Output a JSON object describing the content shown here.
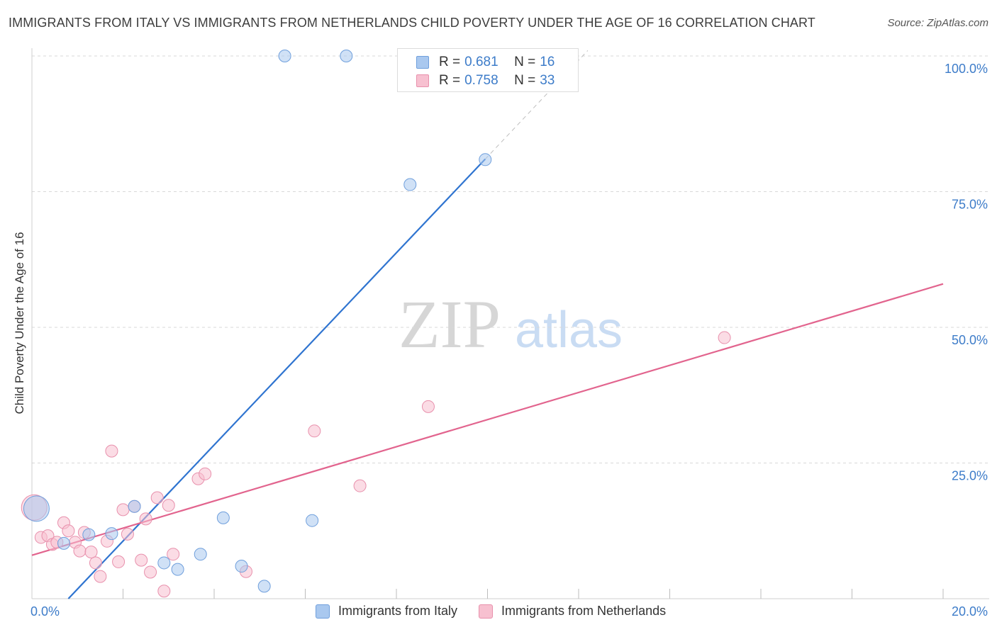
{
  "title": "IMMIGRANTS FROM ITALY VS IMMIGRANTS FROM NETHERLANDS CHILD POVERTY UNDER THE AGE OF 16 CORRELATION CHART",
  "source": "Source: ZipAtlas.com",
  "watermark": {
    "zip": "ZIP",
    "atlas": "atlas"
  },
  "legend": {
    "rows": [
      {
        "r_label": "R =",
        "r_value": "0.681",
        "n_label": "N =",
        "n_value": "16"
      },
      {
        "r_label": "R =",
        "r_value": "0.758",
        "n_label": "N =",
        "n_value": "33"
      }
    ]
  },
  "colors": {
    "italy": "#a9c8ef",
    "italy_edge": "#6f9fdc",
    "italy_line": "#2f74d0",
    "netherlands": "#f7c0d0",
    "netherlands_edge": "#e890ac",
    "netherlands_line": "#e2648e",
    "grid": "#d8d8d8",
    "tick_label": "#3d7cc9"
  },
  "chart_data": {
    "type": "scatter",
    "title": "IMMIGRANTS FROM ITALY VS IMMIGRANTS FROM NETHERLANDS CHILD POVERTY UNDER THE AGE OF 16 CORRELATION CHART",
    "xlabel": "",
    "ylabel": "Child Poverty Under the Age of 16",
    "xlim": [
      0,
      20
    ],
    "ylim": [
      0,
      100
    ],
    "x_tick_labels": [
      "0.0%",
      "20.0%"
    ],
    "y_tick_labels": [
      "25.0%",
      "50.0%",
      "75.0%",
      "100.0%"
    ],
    "y_ticks": [
      25,
      50,
      75,
      100
    ],
    "legend_position": "top-center",
    "series": [
      {
        "name": "Immigrants from Italy",
        "color": "#a9c8ef",
        "points": [
          {
            "x": 0.1,
            "y": 16.6,
            "size": "large"
          },
          {
            "x": 0.7,
            "y": 10.2
          },
          {
            "x": 1.25,
            "y": 11.8
          },
          {
            "x": 1.75,
            "y": 12.0
          },
          {
            "x": 2.25,
            "y": 17.0
          },
          {
            "x": 2.9,
            "y": 6.6
          },
          {
            "x": 3.2,
            "y": 5.4
          },
          {
            "x": 3.7,
            "y": 8.2
          },
          {
            "x": 4.2,
            "y": 14.9
          },
          {
            "x": 4.6,
            "y": 6.0
          },
          {
            "x": 5.1,
            "y": 2.3
          },
          {
            "x": 6.15,
            "y": 14.4
          },
          {
            "x": 5.55,
            "y": 100
          },
          {
            "x": 6.9,
            "y": 100
          },
          {
            "x": 8.3,
            "y": 76.3
          },
          {
            "x": 9.95,
            "y": 80.9
          }
        ],
        "trend": {
          "x": [
            0.8,
            9.95
          ],
          "y": [
            0,
            81
          ],
          "dashed_extension_to": {
            "x": 12.2,
            "y": 101
          }
        }
      },
      {
        "name": "Immigrants from Netherlands",
        "color": "#f7c0d0",
        "points": [
          {
            "x": 0.05,
            "y": 16.8,
            "size": "large"
          },
          {
            "x": 0.2,
            "y": 11.3
          },
          {
            "x": 0.35,
            "y": 11.6
          },
          {
            "x": 0.45,
            "y": 10.0
          },
          {
            "x": 0.55,
            "y": 10.4
          },
          {
            "x": 0.7,
            "y": 14.0
          },
          {
            "x": 0.8,
            "y": 12.5
          },
          {
            "x": 0.95,
            "y": 10.4
          },
          {
            "x": 1.05,
            "y": 8.8
          },
          {
            "x": 1.15,
            "y": 12.2
          },
          {
            "x": 1.3,
            "y": 8.6
          },
          {
            "x": 1.4,
            "y": 6.6
          },
          {
            "x": 1.5,
            "y": 4.1
          },
          {
            "x": 1.65,
            "y": 10.6
          },
          {
            "x": 1.75,
            "y": 27.2
          },
          {
            "x": 1.9,
            "y": 6.8
          },
          {
            "x": 2.0,
            "y": 16.4
          },
          {
            "x": 2.1,
            "y": 11.9
          },
          {
            "x": 2.25,
            "y": 17.0
          },
          {
            "x": 2.4,
            "y": 7.1
          },
          {
            "x": 2.5,
            "y": 14.7
          },
          {
            "x": 2.6,
            "y": 4.9
          },
          {
            "x": 2.75,
            "y": 18.6
          },
          {
            "x": 2.9,
            "y": 1.4
          },
          {
            "x": 3.0,
            "y": 17.2
          },
          {
            "x": 3.1,
            "y": 8.2
          },
          {
            "x": 3.65,
            "y": 22.1
          },
          {
            "x": 3.8,
            "y": 23.0
          },
          {
            "x": 4.7,
            "y": 5.0
          },
          {
            "x": 6.2,
            "y": 30.9
          },
          {
            "x": 7.2,
            "y": 20.8
          },
          {
            "x": 8.7,
            "y": 35.4
          },
          {
            "x": 15.2,
            "y": 48.1
          }
        ],
        "trend": {
          "x": [
            0,
            20
          ],
          "y": [
            8,
            58
          ]
        }
      }
    ]
  }
}
